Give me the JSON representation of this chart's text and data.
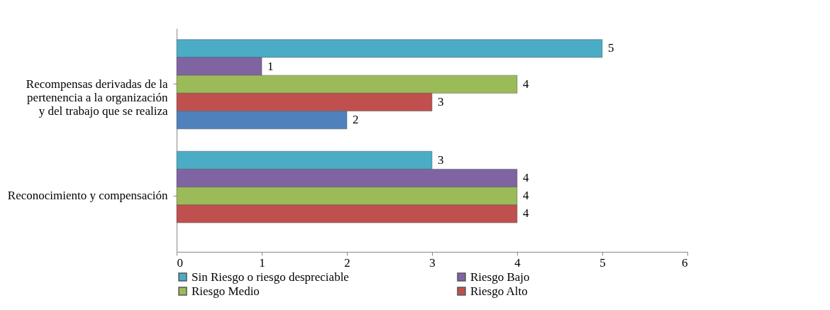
{
  "chart_data": {
    "type": "bar",
    "orientation": "horizontal",
    "categories": [
      "Recompensas derivadas de la pertenencia a la organización y del trabajo que se realiza",
      "Reconocimiento y compensación"
    ],
    "series": [
      {
        "name": "Sin Riesgo o riesgo despreciable",
        "color": "#4bacc6",
        "values": [
          5,
          3
        ]
      },
      {
        "name": "Riesgo Bajo",
        "color": "#8064a2",
        "values": [
          1,
          4
        ]
      },
      {
        "name": "Riesgo Medio",
        "color": "#9bbb59",
        "values": [
          4,
          4
        ]
      },
      {
        "name": "Riesgo Alto",
        "color": "#c0504d",
        "values": [
          3,
          4
        ]
      },
      {
        "color": "#4f81bd",
        "values": [
          2,
          null
        ]
      }
    ],
    "xlim": [
      0,
      6
    ],
    "xticks": [
      0,
      1,
      2,
      3,
      4,
      5,
      6
    ],
    "data_labels": true,
    "grid": false,
    "legend": "bottom"
  }
}
